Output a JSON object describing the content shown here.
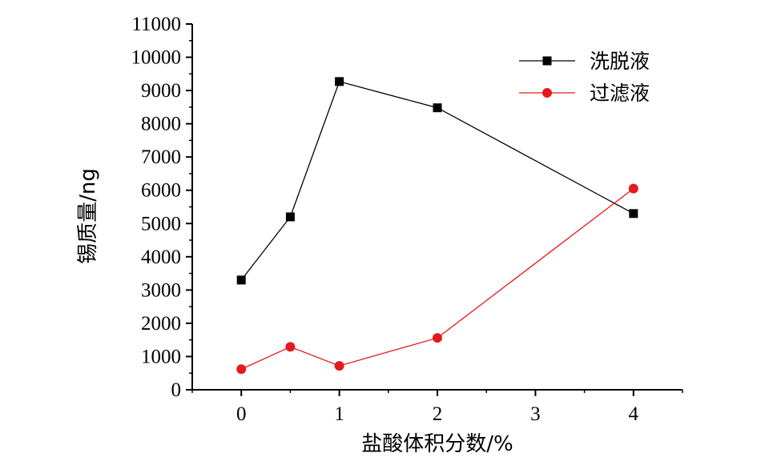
{
  "chart_data": {
    "type": "line",
    "xlabel": "盐酸体积分数/%",
    "ylabel": "锡质量/ng",
    "xlim": [
      -0.5,
      4.5
    ],
    "ylim": [
      0,
      11000
    ],
    "x_ticks": [
      0,
      1,
      2,
      3,
      4
    ],
    "y_ticks": [
      0,
      1000,
      2000,
      3000,
      4000,
      5000,
      6000,
      7000,
      8000,
      9000,
      10000,
      11000
    ],
    "grid": false,
    "legend_position": "top-right",
    "series": [
      {
        "name": "洗脱液",
        "color": "#000000",
        "marker": "square",
        "x": [
          0,
          0.5,
          1,
          2,
          4
        ],
        "y": [
          3300,
          5200,
          9270,
          8480,
          5300
        ]
      },
      {
        "name": "过滤液",
        "color": "#e41a1c",
        "marker": "circle",
        "x": [
          0,
          0.5,
          1,
          2,
          4
        ],
        "y": [
          620,
          1290,
          720,
          1560,
          6050
        ]
      }
    ]
  }
}
